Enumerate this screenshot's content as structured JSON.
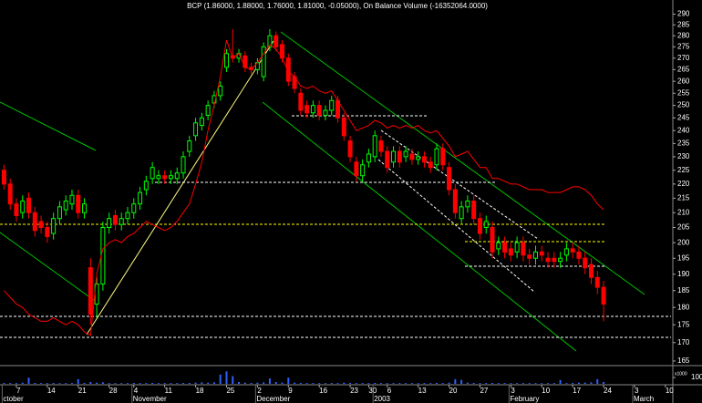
{
  "chart_data": {
    "type": "candlestick",
    "title": "BCP (1.86000, 1.88000, 1.76000, 1.81000, -0.05000), On Balance Volume (-16352064.0000)",
    "categories": [
      null,
      null,
      "7",
      null,
      null,
      null,
      null,
      "14",
      null,
      null,
      null,
      null,
      "21",
      null,
      null,
      null,
      null,
      "28",
      null,
      null,
      null,
      "4",
      null,
      null,
      null,
      null,
      "11",
      null,
      null,
      null,
      null,
      "18",
      null,
      null,
      null,
      null,
      "25",
      null,
      null,
      null,
      null,
      "2",
      null,
      null,
      null,
      null,
      "9",
      null,
      null,
      null,
      null,
      "16",
      null,
      null,
      null,
      null,
      "23",
      null,
      null,
      "30",
      null,
      null,
      "6",
      null,
      null,
      null,
      null,
      "13",
      null,
      null,
      null,
      null,
      "20",
      null,
      null,
      null,
      null,
      "27",
      null,
      null,
      null,
      null,
      "3",
      null,
      null,
      null,
      null,
      "10",
      null,
      null,
      null,
      null,
      "17",
      null,
      null,
      null,
      null,
      "24",
      null,
      null,
      null,
      null,
      "3",
      null,
      null,
      null,
      null,
      "10",
      null
    ],
    "months": [
      "ctober",
      null,
      null,
      null,
      null,
      null,
      null,
      null,
      null,
      null,
      null,
      null,
      null,
      null,
      null,
      null,
      null,
      null,
      null,
      null,
      null,
      "November",
      null,
      null,
      null,
      null,
      null,
      null,
      null,
      null,
      null,
      null,
      null,
      null,
      null,
      null,
      null,
      null,
      null,
      null,
      null,
      "December",
      null,
      null,
      null,
      null,
      null,
      null,
      null,
      null,
      null,
      null,
      null,
      null,
      null,
      null,
      null,
      null,
      null,
      null,
      "2003",
      null,
      null,
      null,
      null,
      null,
      null,
      null,
      null,
      null,
      null,
      null,
      null,
      null,
      null,
      null,
      null,
      null,
      null,
      null,
      null,
      null,
      "February",
      null,
      null,
      null,
      null,
      null,
      null,
      null,
      null,
      null,
      null,
      null,
      null,
      null,
      null,
      null,
      null,
      null,
      null,
      null,
      "March",
      null,
      null,
      null,
      null,
      null,
      null
    ],
    "open": [
      225,
      220,
      213,
      210,
      215,
      210,
      207,
      205,
      203,
      208,
      211,
      213,
      216,
      210,
      192,
      181,
      187,
      205,
      209,
      206,
      208,
      210,
      213,
      218,
      222,
      222,
      223,
      222,
      222,
      224,
      232,
      238,
      242,
      246,
      251,
      254,
      266,
      271,
      270,
      271,
      266,
      265,
      262,
      275,
      280,
      276,
      270,
      262,
      255,
      250,
      247,
      250,
      246,
      248,
      252,
      245,
      236,
      228,
      223,
      228,
      230,
      236,
      232,
      228,
      232,
      230,
      231,
      229,
      230,
      228,
      227,
      233,
      226,
      218,
      208,
      212,
      214,
      208,
      205,
      205,
      198,
      200,
      198,
      197,
      200,
      196,
      195,
      197,
      195,
      195,
      194,
      196,
      198,
      197,
      195,
      193,
      189,
      186,
      null,
      null,
      null,
      null,
      null,
      null,
      null,
      null,
      null,
      null,
      null
    ],
    "high": [
      227,
      222,
      215,
      216,
      217,
      212,
      209,
      207,
      210,
      214,
      216,
      218,
      218,
      215,
      195,
      189,
      207,
      210,
      211,
      210,
      212,
      215,
      219,
      223,
      228,
      225,
      225,
      225,
      226,
      232,
      238,
      245,
      247,
      252,
      256,
      260,
      274,
      283,
      274,
      273,
      268,
      270,
      277,
      283,
      282,
      278,
      272,
      264,
      257,
      252,
      252,
      252,
      250,
      254,
      254,
      247,
      238,
      230,
      229,
      233,
      240,
      238,
      234,
      234,
      234,
      234,
      233,
      232,
      232,
      230,
      235,
      235,
      228,
      220,
      214,
      216,
      216,
      210,
      209,
      207,
      202,
      202,
      200,
      202,
      202,
      198,
      199,
      199,
      197,
      197,
      197,
      200,
      200,
      199,
      197,
      195,
      191,
      188,
      null,
      null,
      null,
      null,
      null,
      null,
      null,
      null,
      null,
      null,
      null
    ],
    "low": [
      218,
      211,
      207,
      208,
      208,
      202,
      203,
      200,
      201,
      206,
      209,
      211,
      208,
      208,
      175,
      177,
      185,
      203,
      204,
      204,
      206,
      208,
      211,
      216,
      220,
      220,
      220,
      220,
      220,
      222,
      230,
      236,
      240,
      244,
      249,
      252,
      264,
      268,
      268,
      264,
      263,
      263,
      260,
      273,
      273,
      268,
      258,
      255,
      246,
      245,
      245,
      244,
      244,
      246,
      243,
      236,
      228,
      221,
      221,
      226,
      228,
      230,
      224,
      226,
      226,
      228,
      227,
      227,
      226,
      224,
      225,
      225,
      216,
      208,
      206,
      210,
      206,
      201,
      203,
      195,
      196,
      195,
      194,
      195,
      194,
      193,
      193,
      194,
      192,
      192,
      192,
      194,
      195,
      193,
      190,
      187,
      184,
      176,
      null,
      null,
      null,
      null,
      null,
      null,
      null,
      null,
      null,
      null,
      null
    ],
    "close": [
      220,
      213,
      209,
      214,
      210,
      204,
      205,
      202,
      208,
      212,
      214,
      216,
      210,
      213,
      178,
      187,
      205,
      208,
      206,
      208,
      210,
      213,
      217,
      221,
      226,
      223,
      222,
      223,
      224,
      230,
      236,
      243,
      245,
      250,
      254,
      258,
      272,
      270,
      272,
      266,
      265,
      268,
      275,
      280,
      275,
      270,
      260,
      257,
      248,
      247,
      250,
      246,
      248,
      252,
      245,
      238,
      230,
      223,
      227,
      231,
      238,
      232,
      226,
      232,
      228,
      232,
      229,
      230,
      228,
      226,
      233,
      227,
      218,
      210,
      212,
      214,
      208,
      203,
      207,
      197,
      200,
      197,
      196,
      200,
      196,
      195,
      197,
      196,
      194,
      194,
      195,
      198,
      197,
      195,
      192,
      189,
      186,
      181,
      null,
      null,
      null,
      null,
      null,
      null,
      null,
      null,
      null,
      null,
      null
    ],
    "up_color": "#00ff00",
    "down_color": "#ff0000",
    "obv": {
      "color": "#ff0000",
      "values": [
        185,
        183,
        181,
        180,
        178,
        177,
        176,
        176,
        177,
        176,
        175,
        176,
        175,
        173,
        172,
        190,
        198,
        200,
        201,
        200,
        202,
        203,
        205,
        207,
        206,
        205,
        204,
        205,
        207,
        210,
        213,
        220,
        228,
        240,
        250,
        262,
        278,
        270,
        272,
        266,
        265,
        268,
        272,
        276,
        274,
        270,
        264,
        262,
        258,
        257,
        258,
        256,
        255,
        256,
        252,
        248,
        244,
        240,
        241,
        242,
        244,
        243,
        241,
        242,
        241,
        242,
        241,
        242,
        240,
        239,
        240,
        237,
        234,
        230,
        231,
        232,
        229,
        226,
        226,
        222,
        222,
        221,
        220,
        220,
        219,
        218,
        218,
        218,
        217,
        217,
        217,
        218,
        219,
        219,
        218,
        216,
        213,
        211,
        null,
        null,
        null,
        null,
        null,
        null,
        null,
        null,
        null,
        null,
        null
      ]
    },
    "ylog": true,
    "ylim": [
      164,
      295
    ],
    "yticks": [
      165,
      170,
      175,
      180,
      185,
      190,
      195,
      200,
      205,
      210,
      215,
      220,
      225,
      230,
      235,
      240,
      245,
      250,
      255,
      260,
      265,
      270,
      275,
      280,
      285,
      290
    ],
    "volume": {
      "color": "#3060ff",
      "unit": "x1000",
      "ylim": [
        0,
        100
      ],
      "yticks": [
        100
      ],
      "values": [
        6,
        5,
        5,
        8,
        40,
        6,
        5,
        5,
        6,
        5,
        5,
        5,
        30,
        6,
        12,
        8,
        10,
        5,
        5,
        5,
        5,
        6,
        5,
        5,
        6,
        5,
        5,
        5,
        5,
        6,
        6,
        8,
        10,
        8,
        10,
        60,
        80,
        50,
        12,
        8,
        6,
        8,
        10,
        35,
        12,
        8,
        40,
        8,
        6,
        5,
        5,
        5,
        5,
        6,
        5,
        8,
        6,
        5,
        5,
        5,
        6,
        5,
        5,
        5,
        5,
        5,
        5,
        5,
        5,
        5,
        6,
        5,
        8,
        30,
        25,
        8,
        6,
        5,
        5,
        6,
        5,
        5,
        5,
        5,
        5,
        5,
        5,
        5,
        5,
        5,
        25,
        5,
        6,
        8,
        8,
        10,
        30,
        12,
        null,
        null,
        null,
        null,
        null,
        null,
        null,
        null,
        null,
        null,
        null
      ]
    }
  }
}
